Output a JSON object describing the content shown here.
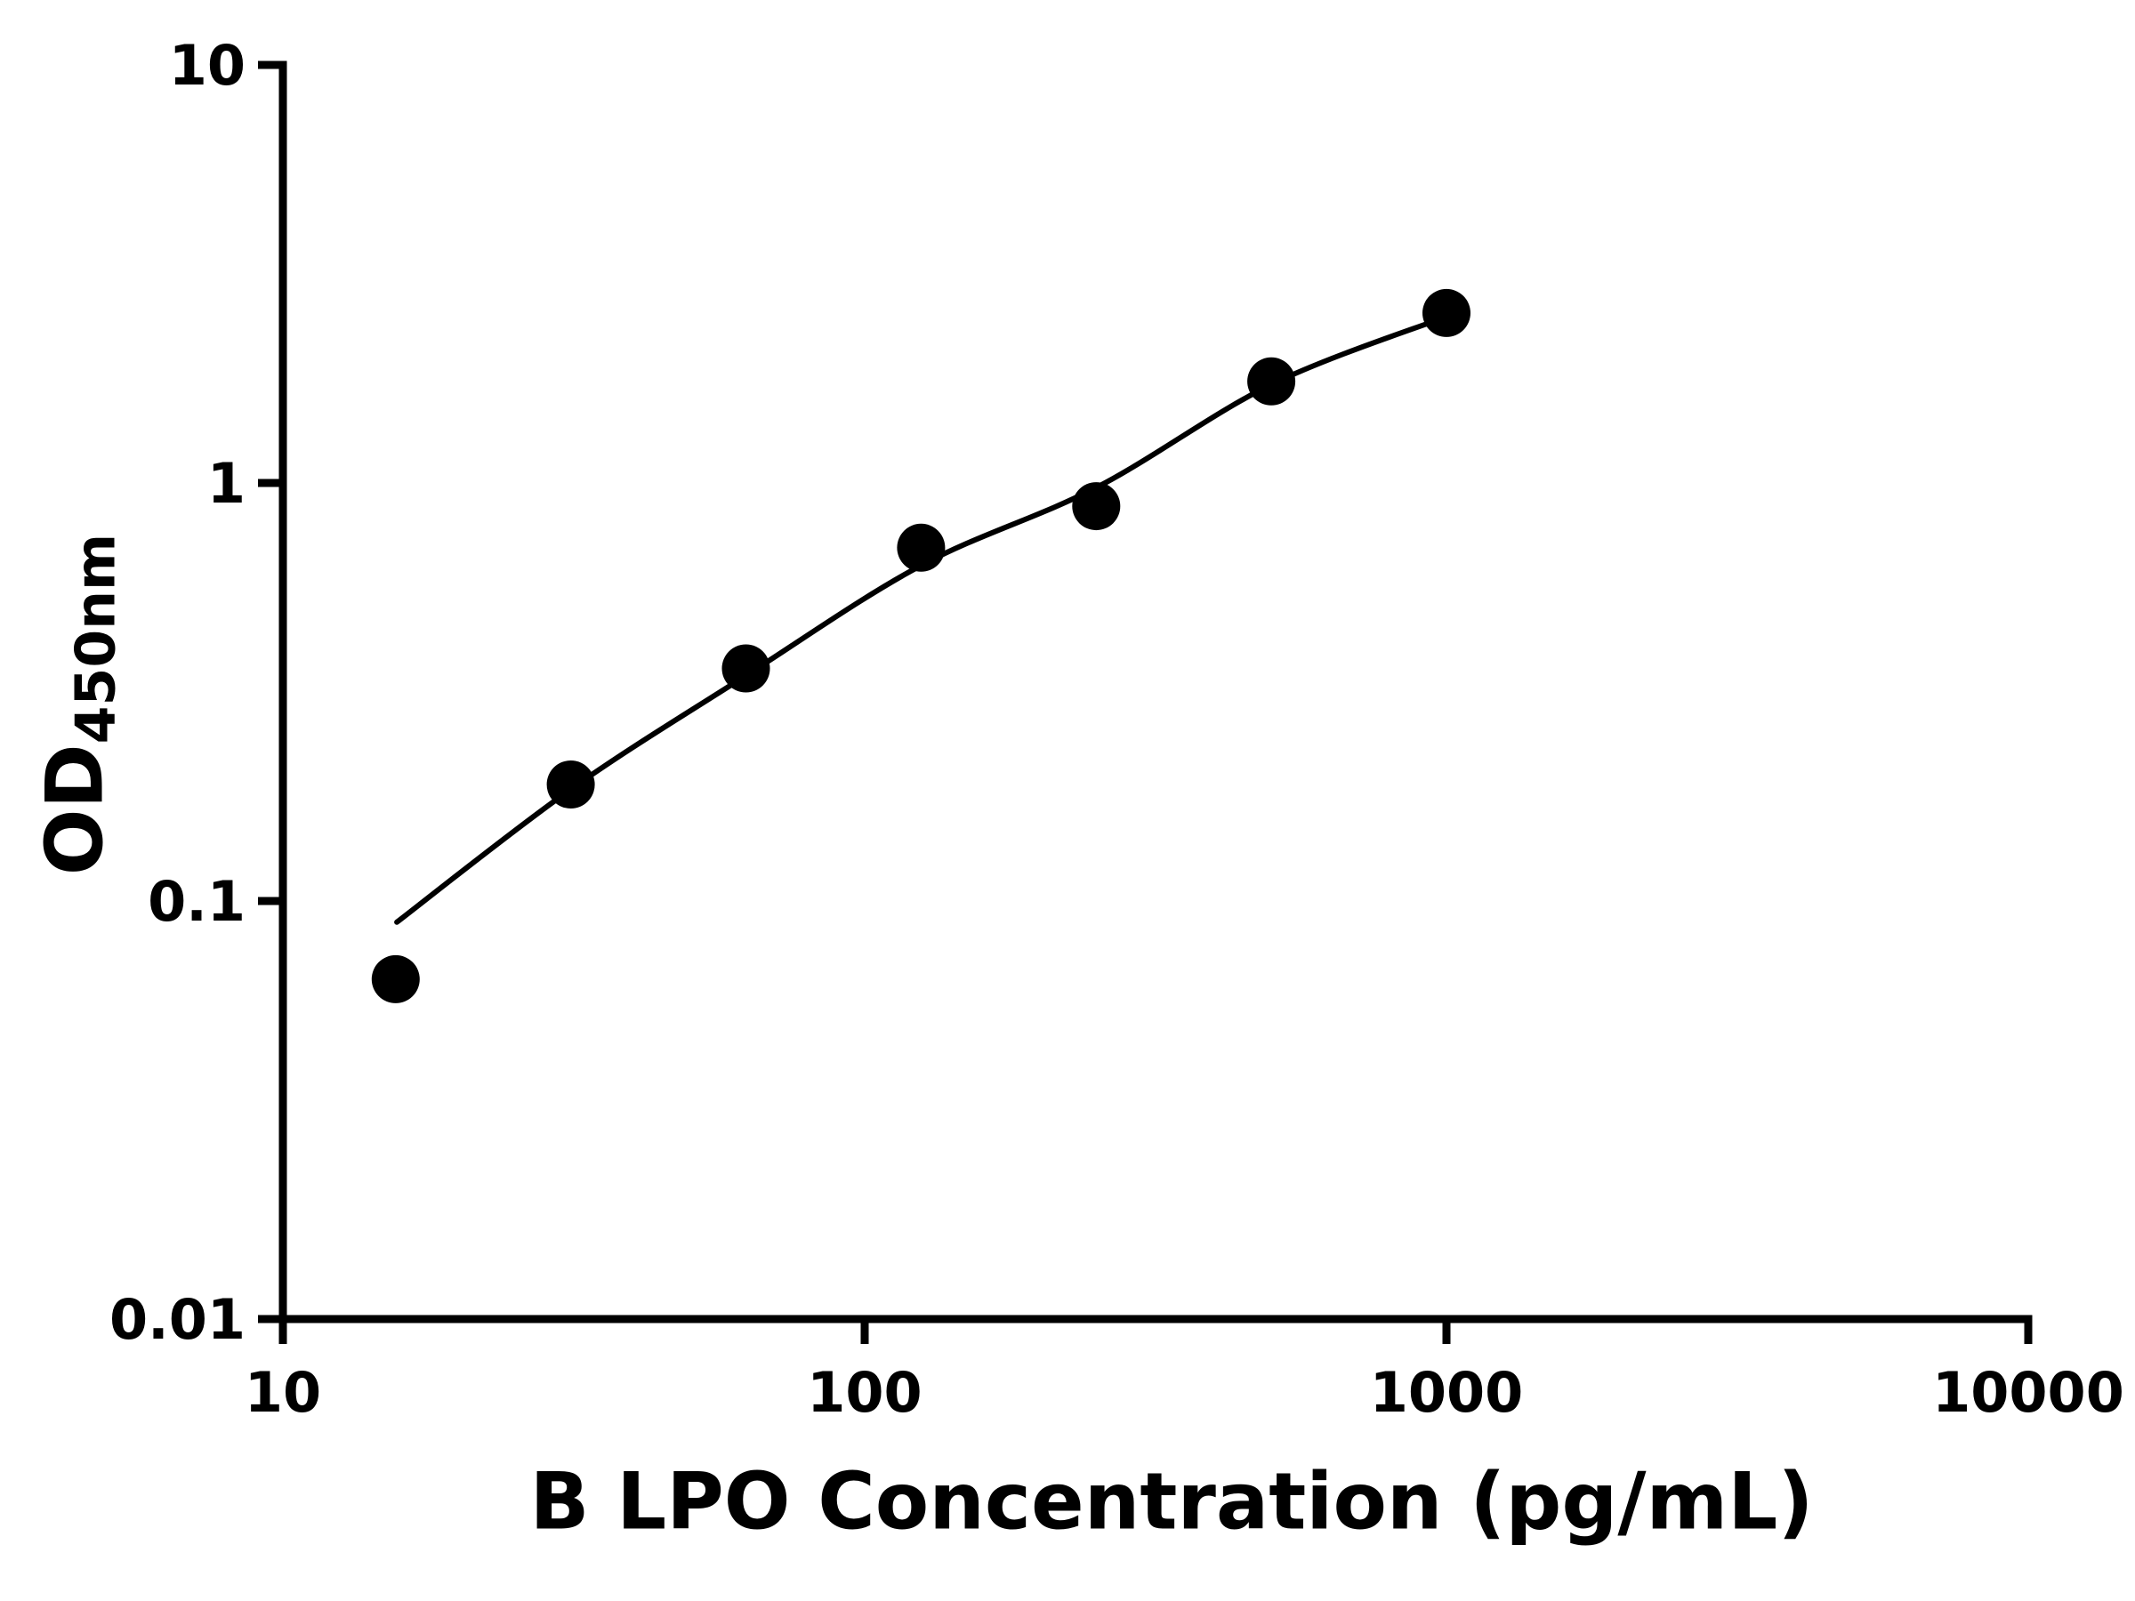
{
  "chart_data": {
    "type": "scatter",
    "title": "",
    "xlabel": "B LPO Concentration (pg/mL)",
    "ylabel_main": "OD",
    "ylabel_sub": "450nm",
    "x_scale": "log",
    "y_scale": "log",
    "xlim": [
      10,
      10000
    ],
    "ylim": [
      0.01,
      10
    ],
    "grid": false,
    "legend": "none",
    "axis_color": "#000000",
    "background": "#ffffff",
    "x_ticks": [
      {
        "value": 10,
        "label": "10"
      },
      {
        "value": 100,
        "label": "100"
      },
      {
        "value": 1000,
        "label": "1000"
      },
      {
        "value": 10000,
        "label": "10000"
      }
    ],
    "y_ticks": [
      {
        "value": 0.01,
        "label": "0.01"
      },
      {
        "value": 0.1,
        "label": "0.1"
      },
      {
        "value": 1,
        "label": "1"
      },
      {
        "value": 10,
        "label": "10"
      }
    ],
    "series": [
      {
        "name": "fit-curve",
        "type": "line",
        "color": "#000000",
        "stroke_width": 6,
        "points": [
          [
            15.7,
            0.089
          ],
          [
            31.25,
            0.185
          ],
          [
            62.5,
            0.346
          ],
          [
            125,
            0.635
          ],
          [
            250,
            0.975
          ],
          [
            500,
            1.72
          ],
          [
            1000,
            2.5
          ]
        ]
      },
      {
        "name": "standard-points",
        "type": "scatter",
        "color": "#000000",
        "marker_radius": 27,
        "points": [
          [
            15.625,
            0.065
          ],
          [
            31.25,
            0.19
          ],
          [
            62.5,
            0.36
          ],
          [
            125,
            0.7
          ],
          [
            250,
            0.88
          ],
          [
            500,
            1.75
          ],
          [
            1000,
            2.55
          ]
        ]
      }
    ]
  }
}
